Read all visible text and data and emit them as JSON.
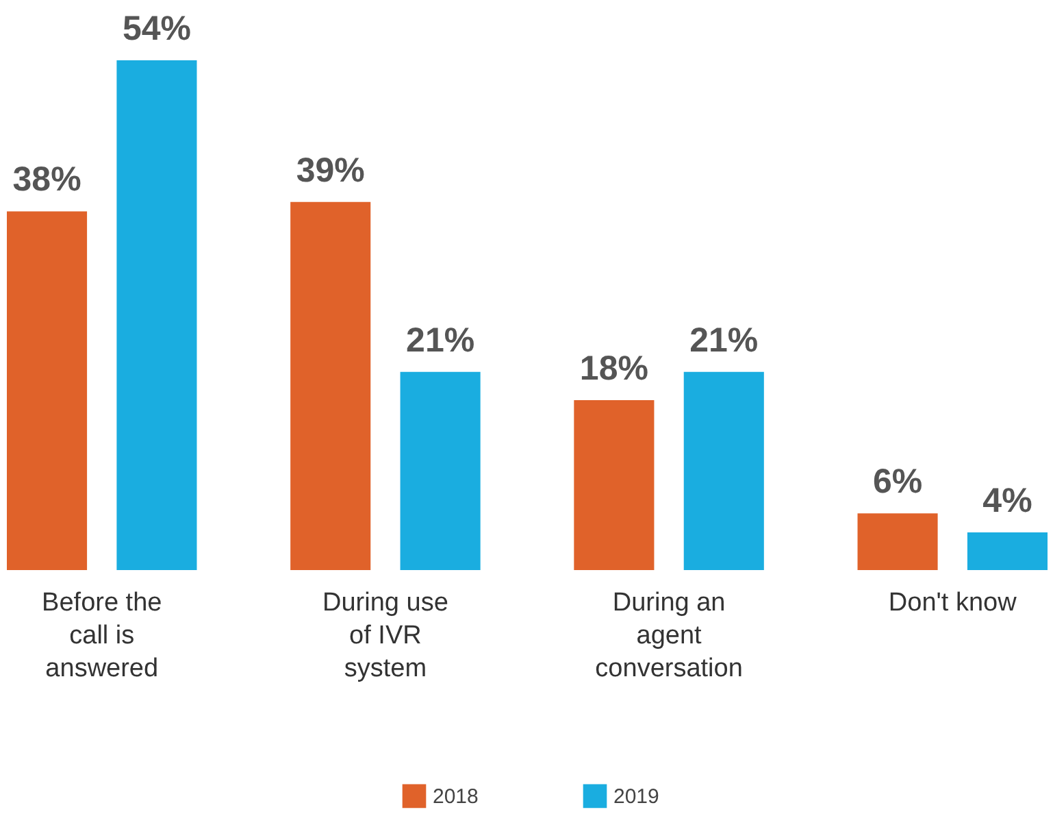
{
  "chart_data": {
    "type": "bar",
    "categories": [
      "Before the call is answered",
      "During use of IVR system",
      "During an agent conversation",
      "Don't know"
    ],
    "series": [
      {
        "name": "2018",
        "color": "#e0622a",
        "values": [
          38,
          39,
          18,
          6
        ],
        "value_labels": [
          "38%",
          "39%",
          "18%",
          "6%"
        ]
      },
      {
        "name": "2019",
        "color": "#1aade0",
        "values": [
          54,
          21,
          21,
          4
        ],
        "value_labels": [
          "54%",
          "21%",
          "21%",
          "4%"
        ]
      }
    ],
    "legend": "bottom",
    "grid": false
  }
}
